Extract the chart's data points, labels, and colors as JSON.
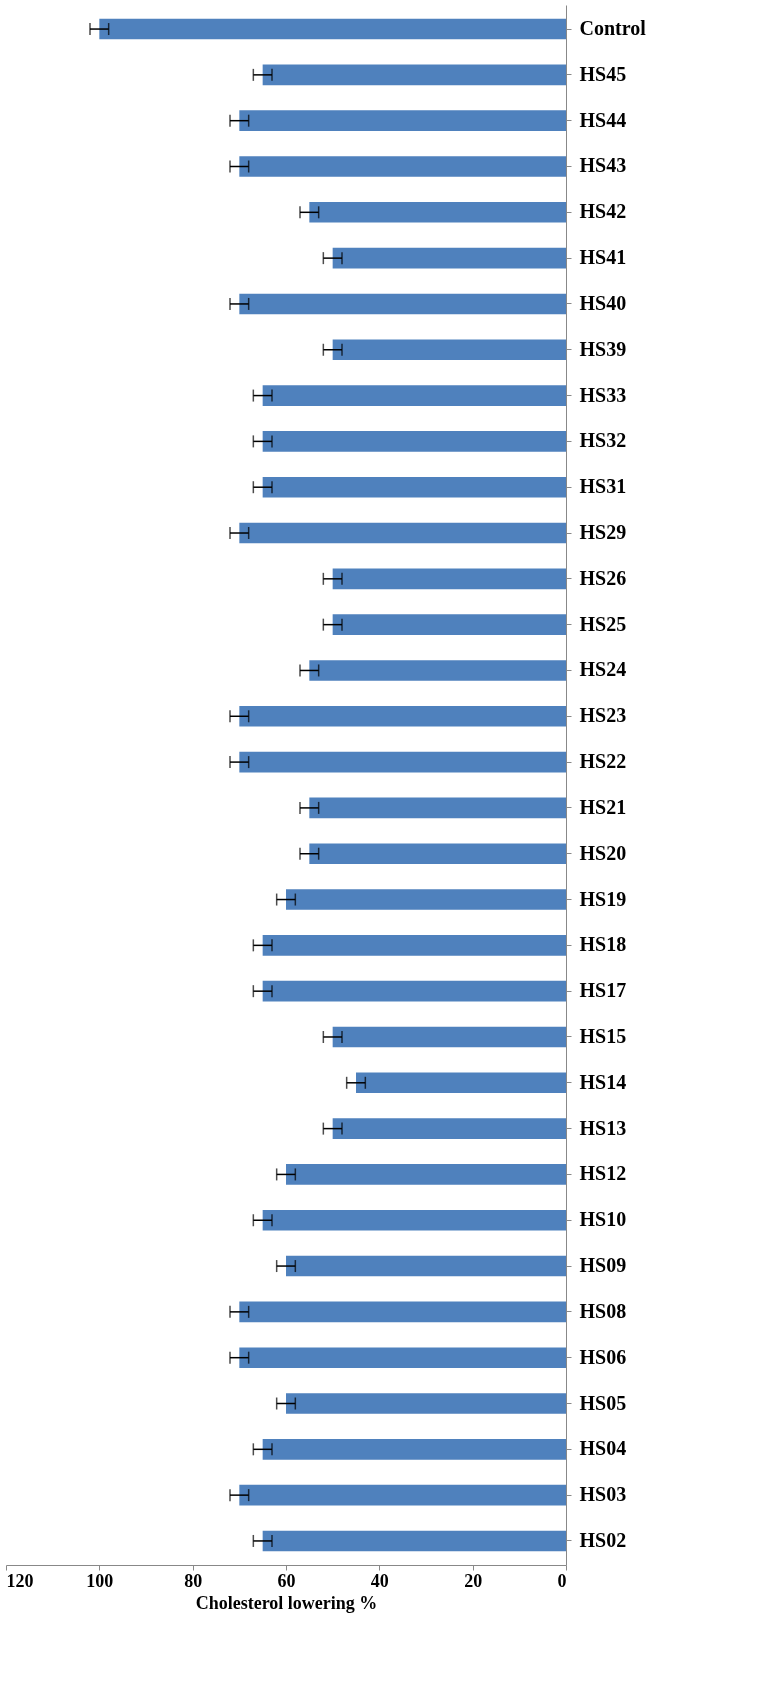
{
  "chart_data": {
    "type": "bar",
    "orientation": "horizontal",
    "xlabel": "Cholesterol lowering %",
    "categories": [
      "Control",
      "HS45",
      "HS44",
      "HS43",
      "HS42",
      "HS41",
      "HS40",
      "HS39",
      "HS33",
      "HS32",
      "HS31",
      "HS29",
      "HS26",
      "HS25",
      "HS24",
      "HS23",
      "HS22",
      "HS21",
      "HS20",
      "HS19",
      "HS18",
      "HS17",
      "HS15",
      "HS14",
      "HS13",
      "HS12",
      "HS10",
      "HS09",
      "HS08",
      "HS06",
      "HS05",
      "HS04",
      "HS03",
      "HS02"
    ],
    "values": [
      100,
      65,
      70,
      70,
      55,
      50,
      70,
      50,
      65,
      65,
      65,
      70,
      50,
      50,
      55,
      70,
      70,
      55,
      55,
      60,
      65,
      65,
      50,
      45,
      50,
      60,
      65,
      60,
      70,
      70,
      60,
      65,
      70,
      65
    ],
    "errors": [
      2,
      2,
      2,
      2,
      2,
      2,
      2,
      2,
      2,
      2,
      2,
      2,
      2,
      2,
      2,
      2,
      2,
      2,
      2,
      2,
      2,
      2,
      2,
      2,
      2,
      2,
      2,
      2,
      2,
      2,
      2,
      2,
      2,
      2
    ],
    "color": "#4f81bd",
    "xlim": [
      120,
      0
    ],
    "xticks": [
      0,
      20,
      40,
      60,
      80,
      100,
      120
    ],
    "grid": false
  }
}
